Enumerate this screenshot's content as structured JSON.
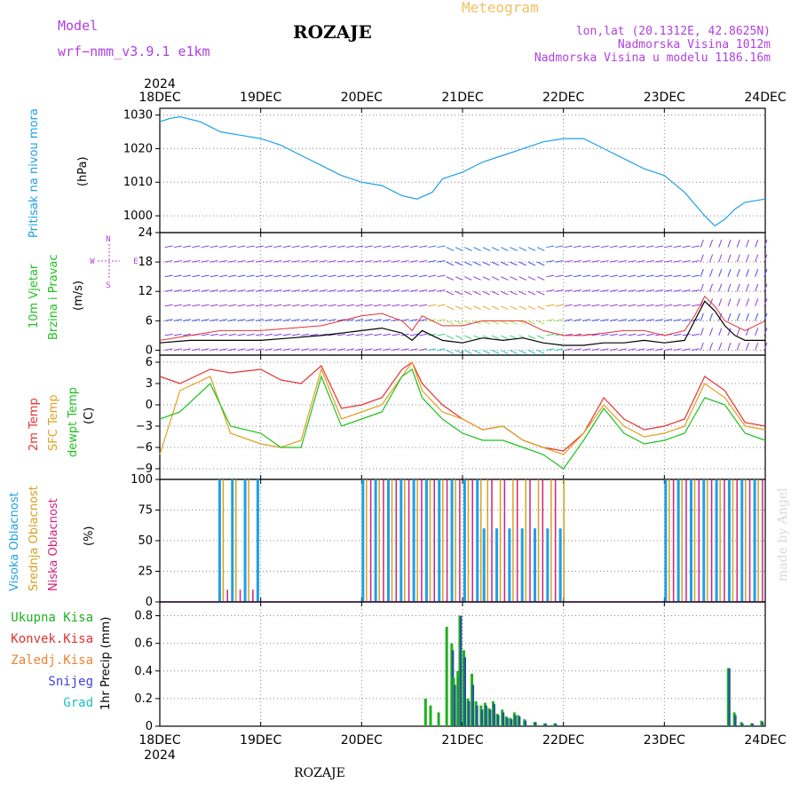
{
  "header": {
    "model_label": "Model",
    "model_name": "wrf−nmm_v3.9.1  e1km",
    "station": "ROZAJE",
    "product": "Meteogram",
    "lonlat": "lon,lat (20.1312E, 42.8625N)",
    "elevation": "Nadmorska Visina 1012m",
    "model_elevation": "Nadmorska Visina u modelu 1186.16m",
    "year": "2024"
  },
  "footer": {
    "station": "ROZAJE",
    "credit": "made by Angel"
  },
  "dates": [
    "18DEC",
    "19DEC",
    "20DEC",
    "21DEC",
    "22DEC",
    "23DEC",
    "24DEC"
  ],
  "colors": {
    "pressure": "#1ea0e6",
    "wind_label": "#20c020",
    "compass": "#b040e0",
    "temp2m": "#e83030",
    "sfc": "#e0a020",
    "dew": "#20c020",
    "cloud_high": "#1ea0e6",
    "cloud_mid": "#d8a020",
    "cloud_low": "#d0207a",
    "precip_total": "#20b020",
    "precip_conv": "#e03030",
    "precip_frz": "#f08030",
    "precip_snow": "#4040e0",
    "precip_grad": "#20c0c0",
    "model": "#b040e0",
    "product": "#f0c060"
  },
  "panels": {
    "pressure": {
      "label": "Pritisak na nivou mora",
      "unit": "(hPa)"
    },
    "wind": {
      "label1": "10m Vjetar",
      "label2": "Brzina i Pravac",
      "unit": "(m/s)",
      "compass": {
        "n": "N",
        "s": "S",
        "w": "W",
        "e": "E"
      }
    },
    "temp": {
      "label1": "2m Temp",
      "label2": "SFC Temp",
      "label3": "dewpt Temp",
      "unit": "(C)"
    },
    "cloud": {
      "label1": "Visoka Oblacnost",
      "label2": "Srednja Oblacnost",
      "label3": "Niska Oblacnost",
      "unit": "(%)"
    },
    "precip": {
      "unit": "1hr Precip (mm)",
      "legend": [
        "Ukupna Kisa",
        "Konvek.Kisa",
        "Zaledj.Kisa",
        "Snijeg",
        "Grad"
      ]
    }
  },
  "chart_data": [
    {
      "type": "line",
      "ylabel": "(hPa)",
      "ylim": [
        995,
        1032
      ],
      "yticks": [
        "1030",
        "1020",
        "1010",
        "1000"
      ],
      "x_days": [
        0,
        0.1,
        0.2,
        0.4,
        0.6,
        0.8,
        1.0,
        1.2,
        1.4,
        1.6,
        1.8,
        2.0,
        2.2,
        2.4,
        2.55,
        2.7,
        2.8,
        3.0,
        3.2,
        3.4,
        3.6,
        3.8,
        4.0,
        4.2,
        4.4,
        4.6,
        4.8,
        5.0,
        5.2,
        5.4,
        5.5,
        5.6,
        5.7,
        5.8,
        6.0
      ],
      "values": [
        1028,
        1029,
        1029.5,
        1028,
        1025,
        1024,
        1023,
        1021,
        1018,
        1015,
        1012,
        1010,
        1009,
        1006,
        1005,
        1007,
        1011,
        1013,
        1016,
        1018,
        1020,
        1022,
        1023,
        1023,
        1020,
        1017,
        1014,
        1012,
        1007,
        1000,
        997,
        999,
        1002,
        1004,
        1005
      ],
      "series": [
        {
          "name": "Pritisak na nivou mora"
        }
      ]
    },
    {
      "type": "line",
      "ylabel": "(m/s)",
      "ylim": [
        -1,
        24
      ],
      "yticks": [
        "24",
        "18",
        "12",
        "6",
        "0"
      ],
      "x_days": [
        0,
        0.3,
        0.6,
        1.0,
        1.3,
        1.6,
        1.8,
        2.0,
        2.2,
        2.4,
        2.5,
        2.6,
        2.8,
        3.0,
        3.2,
        3.4,
        3.6,
        3.8,
        4.0,
        4.2,
        4.4,
        4.6,
        4.8,
        5.0,
        5.2,
        5.3,
        5.4,
        5.5,
        5.6,
        5.7,
        5.8,
        6.0
      ],
      "series": [
        {
          "name": "speed",
          "values": [
            1.5,
            2,
            2,
            2,
            2.5,
            3,
            3.5,
            4,
            4.5,
            3.5,
            2,
            4,
            2,
            1.5,
            2.5,
            2,
            2.5,
            1.5,
            1,
            1,
            1.5,
            1.5,
            2,
            1.5,
            2,
            6,
            10,
            8,
            5,
            3,
            2,
            2
          ]
        },
        {
          "name": "gust",
          "values": [
            2,
            3,
            4,
            4,
            4.5,
            5,
            6,
            7,
            7.5,
            6,
            4,
            7,
            5,
            5,
            6,
            6,
            6,
            4,
            3,
            3,
            3.5,
            4,
            4,
            3,
            4,
            7,
            11,
            9,
            6,
            5,
            4,
            6
          ]
        }
      ]
    },
    {
      "type": "line",
      "ylabel": "(C)",
      "ylim": [
        -10.5,
        7
      ],
      "yticks": [
        "6",
        "3",
        "0",
        "−3",
        "−6",
        "−9"
      ],
      "x_days": [
        0,
        0.2,
        0.5,
        0.7,
        1.0,
        1.2,
        1.4,
        1.6,
        1.8,
        2.0,
        2.2,
        2.4,
        2.5,
        2.6,
        2.8,
        3.0,
        3.2,
        3.4,
        3.6,
        3.8,
        4.0,
        4.2,
        4.4,
        4.6,
        4.8,
        5.0,
        5.2,
        5.4,
        5.6,
        5.8,
        6.0
      ],
      "series": [
        {
          "name": "2m Temp",
          "values": [
            4,
            3,
            5,
            4.5,
            5,
            3.5,
            3,
            5.5,
            -0.5,
            0,
            1,
            5,
            6,
            3,
            0,
            -2,
            -3.5,
            -3,
            -5,
            -6,
            -6.5,
            -4,
            1,
            -2,
            -3.5,
            -3,
            -2,
            4,
            2,
            -2.5,
            -3
          ]
        },
        {
          "name": "SFC Temp",
          "values": [
            -7,
            2,
            4,
            -4,
            -5.5,
            -6,
            -5,
            5,
            -2,
            -1,
            0,
            4,
            6,
            2,
            -1,
            -2,
            -3.5,
            -3,
            -5,
            -6,
            -7,
            -4,
            0,
            -3,
            -4.5,
            -4,
            -3,
            3,
            1,
            -3,
            -3.5
          ]
        },
        {
          "name": "dewpt Temp",
          "values": [
            -2,
            -1,
            3,
            -3,
            -4,
            -6,
            -6,
            4,
            -3,
            -2,
            -1,
            4,
            5,
            1,
            -2,
            -4,
            -5,
            -5,
            -6,
            -7,
            -9,
            -5,
            -0.5,
            -4,
            -5.5,
            -5,
            -4,
            1,
            0,
            -4,
            -5
          ]
        }
      ]
    },
    {
      "type": "bar",
      "ylabel": "(%)",
      "ylim": [
        0,
        100
      ],
      "yticks": [
        "100",
        "75",
        "50",
        "25",
        "0"
      ],
      "periods_days": [
        [
          0.58,
          1.0
        ],
        [
          2.0,
          3.2
        ],
        [
          3.2,
          4.0
        ],
        [
          5.0,
          6.0
        ]
      ],
      "series": [
        {
          "name": "Visoka Oblacnost",
          "values": [
            100,
            100,
            60,
            100
          ]
        },
        {
          "name": "Srednja Oblacnost",
          "values": [
            100,
            100,
            100,
            100
          ]
        },
        {
          "name": "Niska Oblacnost",
          "values": [
            10,
            100,
            100,
            100
          ]
        }
      ]
    },
    {
      "type": "bar",
      "ylabel": "1hr Precip (mm)",
      "ylim": [
        0,
        0.9
      ],
      "yticks": [
        "0.8",
        "0.6",
        "0.4",
        "0.2",
        "0"
      ],
      "x_days": [
        2.62,
        2.67,
        2.75,
        2.83,
        2.88,
        2.9,
        2.94,
        2.96,
        3.0,
        3.04,
        3.08,
        3.12,
        3.17,
        3.21,
        3.25,
        3.29,
        3.33,
        3.38,
        3.42,
        3.46,
        3.5,
        3.54,
        3.6,
        3.7,
        3.8,
        3.9,
        5.62,
        5.68,
        5.75,
        5.85,
        5.95
      ],
      "series": [
        {
          "name": "Ukupna Kisa",
          "values": [
            0.2,
            0.15,
            0.1,
            0.72,
            0.6,
            0.35,
            0.4,
            0.8,
            0.55,
            0.2,
            0.38,
            0.18,
            0.15,
            0.17,
            0.13,
            0.18,
            0.09,
            0.12,
            0.07,
            0.06,
            0.1,
            0.08,
            0.05,
            0.03,
            0.02,
            0.02,
            0.42,
            0.1,
            0.03,
            0.02,
            0.04
          ]
        },
        {
          "name": "Snijeg",
          "values": [
            0.0,
            0.0,
            0.0,
            0.0,
            0.55,
            0.3,
            0.35,
            0.8,
            0.5,
            0.18,
            0.3,
            0.15,
            0.12,
            0.15,
            0.12,
            0.16,
            0.08,
            0.1,
            0.06,
            0.05,
            0.08,
            0.07,
            0.04,
            0.03,
            0.02,
            0.02,
            0.42,
            0.08,
            0.02,
            0.02,
            0.03
          ]
        }
      ]
    }
  ]
}
